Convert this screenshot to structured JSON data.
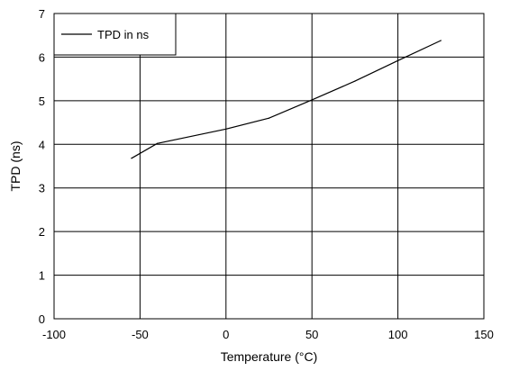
{
  "chart_data": {
    "type": "line",
    "title": "",
    "xlabel": "Temperature (°C)",
    "ylabel": "TPD (ns)",
    "xlim": [
      -100,
      150
    ],
    "ylim": [
      0,
      7
    ],
    "x_ticks": [
      -100,
      -50,
      0,
      50,
      100,
      150
    ],
    "y_ticks": [
      0,
      1,
      2,
      3,
      4,
      5,
      6,
      7
    ],
    "x_tick_labels": [
      "-100",
      "-50",
      "0",
      "50",
      "100",
      "150"
    ],
    "y_tick_labels": [
      "0",
      "1",
      "2",
      "3",
      "4",
      "5",
      "6",
      "7"
    ],
    "grid": true,
    "legend_position": "top-left",
    "series": [
      {
        "name": "TPD in ns",
        "color": "#000000",
        "x": [
          -55,
          -40,
          0,
          25,
          50,
          75,
          100,
          125
        ],
        "y": [
          3.68,
          4.02,
          4.35,
          4.6,
          5.02,
          5.45,
          5.92,
          6.38
        ]
      }
    ]
  }
}
